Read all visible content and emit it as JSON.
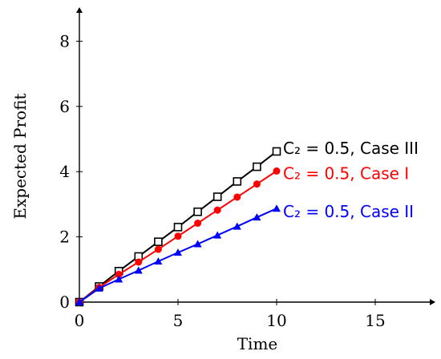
{
  "chart_data": {
    "type": "line",
    "title": "",
    "xlabel": "Time",
    "ylabel": "Expected Profit",
    "xlim": [
      0,
      17.7
    ],
    "ylim": [
      0,
      9
    ],
    "xticks": [
      0,
      5,
      10,
      15
    ],
    "yticks": [
      0,
      2,
      4,
      6,
      8
    ],
    "grid": false,
    "legend": "annotations at line ends",
    "series": [
      {
        "name": "C₂ = 0.5, Case III",
        "color": "#000000",
        "marker": "square-open",
        "x": [
          0,
          1,
          2,
          3,
          4,
          5,
          6,
          7,
          8,
          9,
          10
        ],
        "y": [
          0,
          0.48,
          0.95,
          1.4,
          1.85,
          2.3,
          2.77,
          3.23,
          3.7,
          4.15,
          4.62
        ]
      },
      {
        "name": "C₂ = 0.5, Case I",
        "color": "#ff0000",
        "marker": "circle-filled",
        "x": [
          0,
          1,
          2,
          3,
          4,
          5,
          6,
          7,
          8,
          9,
          10
        ],
        "y": [
          0,
          0.45,
          0.85,
          1.23,
          1.62,
          2.02,
          2.42,
          2.82,
          3.22,
          3.62,
          4.02
        ]
      },
      {
        "name": "C₂ = 0.5, Case II",
        "color": "#0000ff",
        "marker": "triangle-filled",
        "x": [
          0,
          1,
          2,
          3,
          4,
          5,
          6,
          7,
          8,
          9,
          10
        ],
        "y": [
          0,
          0.42,
          0.7,
          0.97,
          1.25,
          1.52,
          1.78,
          2.05,
          2.32,
          2.6,
          2.87
        ]
      }
    ]
  }
}
